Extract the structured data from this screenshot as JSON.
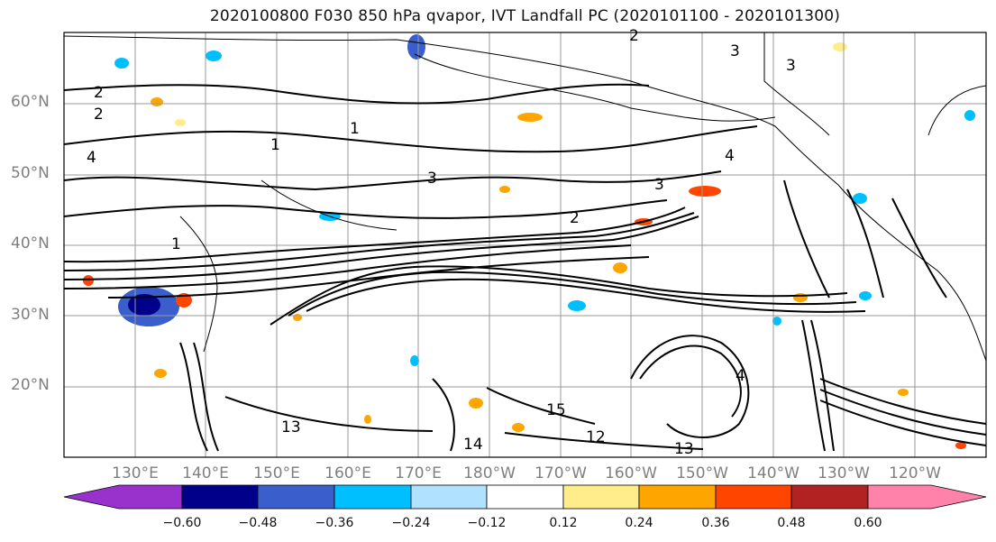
{
  "title": "2020100800 F030 850 hPa qvapor, IVT Landfall PC (2020101100 - 2020101300)",
  "map": {
    "lat_labels": [
      "60°N",
      "50°N",
      "40°N",
      "30°N",
      "20°N"
    ],
    "lon_labels": [
      "130°E",
      "140°E",
      "150°E",
      "160°E",
      "170°E",
      "180°W",
      "170°W",
      "160°W",
      "150°W",
      "140°W",
      "130°W",
      "120°W"
    ],
    "contour_labels": [
      "2",
      "2",
      "1",
      "4",
      "3",
      "3",
      "2",
      "3",
      "1",
      "4",
      "3",
      "1",
      "2",
      "4",
      "13",
      "14",
      "15",
      "12",
      "13"
    ]
  },
  "colorbar": {
    "ticks": [
      "−0.60",
      "−0.48",
      "−0.36",
      "−0.24",
      "−0.12",
      "0.12",
      "0.24",
      "0.36",
      "0.48",
      "0.60"
    ],
    "colors": [
      "#9932cc",
      "#00008b",
      "#3a5fcd",
      "#00bfff",
      "#b0e2ff",
      "#ffffff",
      "#ffec8b",
      "#ffa500",
      "#ff4500",
      "#b22222",
      "#ff82ab"
    ]
  },
  "colors": {
    "contour": "#000000",
    "gridline": "#999999",
    "land_line": "#000000"
  }
}
